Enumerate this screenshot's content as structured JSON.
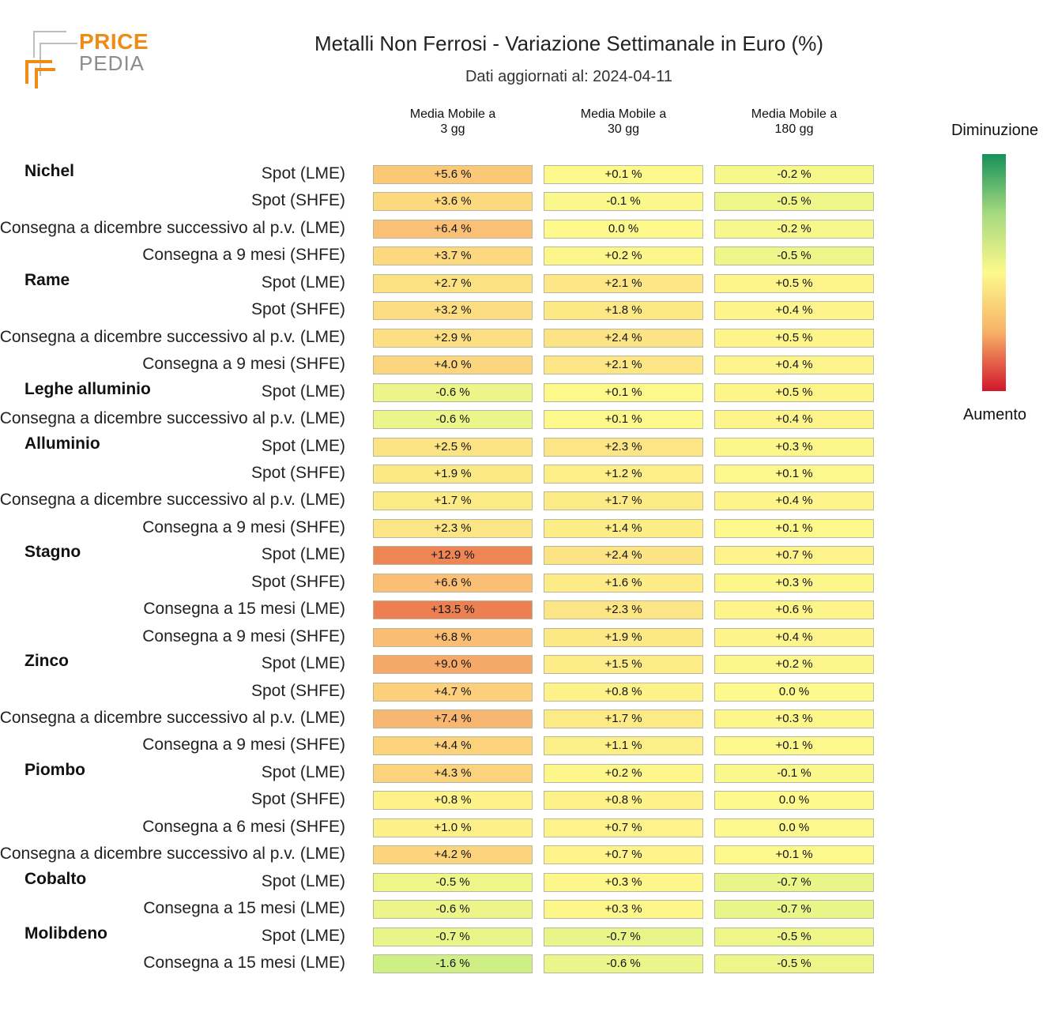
{
  "logo": {
    "line1": "PRICE",
    "line2": "PEDIA"
  },
  "title": "Metalli Non Ferrosi - Variazione Settimanale in Euro (%)",
  "subtitle": "Dati aggiornati al: 2024-04-11",
  "legend": {
    "top": "Diminuzione",
    "bottom": "Aumento",
    "colors": [
      "#15915a",
      "#a5d97f",
      "#fdf98c",
      "#f7b268",
      "#d2162c"
    ]
  },
  "chart_data": {
    "type": "table",
    "columns": [
      "Media Mobile a\n3 gg",
      "Media Mobile a\n30 gg",
      "Media Mobile a\n180 gg"
    ],
    "groups": [
      {
        "name": "Nichel",
        "rows": [
          {
            "label": "Spot (LME)",
            "values": [
              5.6,
              0.1,
              -0.2
            ],
            "text": [
              "+5.6 %",
              "+0.1 %",
              "-0.2 %"
            ]
          },
          {
            "label": "Spot (SHFE)",
            "values": [
              3.6,
              -0.1,
              -0.5
            ],
            "text": [
              "+3.6 %",
              "-0.1 %",
              "-0.5 %"
            ]
          },
          {
            "label": "Consegna a dicembre successivo al p.v. (LME)",
            "values": [
              6.4,
              0.0,
              -0.2
            ],
            "text": [
              "+6.4 %",
              "0.0 %",
              "-0.2 %"
            ]
          },
          {
            "label": "Consegna a 9 mesi (SHFE)",
            "values": [
              3.7,
              0.2,
              -0.5
            ],
            "text": [
              "+3.7 %",
              "+0.2 %",
              "-0.5 %"
            ]
          }
        ]
      },
      {
        "name": "Rame",
        "rows": [
          {
            "label": "Spot (LME)",
            "values": [
              2.7,
              2.1,
              0.5
            ],
            "text": [
              "+2.7 %",
              "+2.1 %",
              "+0.5 %"
            ]
          },
          {
            "label": "Spot (SHFE)",
            "values": [
              3.2,
              1.8,
              0.4
            ],
            "text": [
              "+3.2 %",
              "+1.8 %",
              "+0.4 %"
            ]
          },
          {
            "label": "Consegna a dicembre successivo al p.v. (LME)",
            "values": [
              2.9,
              2.4,
              0.5
            ],
            "text": [
              "+2.9 %",
              "+2.4 %",
              "+0.5 %"
            ]
          },
          {
            "label": "Consegna a 9 mesi (SHFE)",
            "values": [
              4.0,
              2.1,
              0.4
            ],
            "text": [
              "+4.0 %",
              "+2.1 %",
              "+0.4 %"
            ]
          }
        ]
      },
      {
        "name": "Leghe alluminio",
        "rows": [
          {
            "label": "Spot (LME)",
            "values": [
              -0.6,
              0.1,
              0.5
            ],
            "text": [
              "-0.6 %",
              "+0.1 %",
              "+0.5 %"
            ]
          },
          {
            "label": "Consegna a dicembre successivo al p.v. (LME)",
            "values": [
              -0.6,
              0.1,
              0.4
            ],
            "text": [
              "-0.6 %",
              "+0.1 %",
              "+0.4 %"
            ]
          }
        ]
      },
      {
        "name": "Alluminio",
        "rows": [
          {
            "label": "Spot (LME)",
            "values": [
              2.5,
              2.3,
              0.3
            ],
            "text": [
              "+2.5 %",
              "+2.3 %",
              "+0.3 %"
            ]
          },
          {
            "label": "Spot (SHFE)",
            "values": [
              1.9,
              1.2,
              0.1
            ],
            "text": [
              "+1.9 %",
              "+1.2 %",
              "+0.1 %"
            ]
          },
          {
            "label": "Consegna a dicembre successivo al p.v. (LME)",
            "values": [
              1.7,
              1.7,
              0.4
            ],
            "text": [
              "+1.7 %",
              "+1.7 %",
              "+0.4 %"
            ]
          },
          {
            "label": "Consegna a 9 mesi (SHFE)",
            "values": [
              2.3,
              1.4,
              0.1
            ],
            "text": [
              "+2.3 %",
              "+1.4 %",
              "+0.1 %"
            ]
          }
        ]
      },
      {
        "name": "Stagno",
        "rows": [
          {
            "label": "Spot (LME)",
            "values": [
              12.9,
              2.4,
              0.7
            ],
            "text": [
              "+12.9 %",
              "+2.4 %",
              "+0.7 %"
            ]
          },
          {
            "label": "Spot (SHFE)",
            "values": [
              6.6,
              1.6,
              0.3
            ],
            "text": [
              "+6.6 %",
              "+1.6 %",
              "+0.3 %"
            ]
          },
          {
            "label": "Consegna a 15 mesi (LME)",
            "values": [
              13.5,
              2.3,
              0.6
            ],
            "text": [
              "+13.5 %",
              "+2.3 %",
              "+0.6 %"
            ]
          },
          {
            "label": "Consegna a 9 mesi (SHFE)",
            "values": [
              6.8,
              1.9,
              0.4
            ],
            "text": [
              "+6.8 %",
              "+1.9 %",
              "+0.4 %"
            ]
          }
        ]
      },
      {
        "name": "Zinco",
        "rows": [
          {
            "label": "Spot (LME)",
            "values": [
              9.0,
              1.5,
              0.2
            ],
            "text": [
              "+9.0 %",
              "+1.5 %",
              "+0.2 %"
            ]
          },
          {
            "label": "Spot (SHFE)",
            "values": [
              4.7,
              0.8,
              0.0
            ],
            "text": [
              "+4.7 %",
              "+0.8 %",
              "0.0 %"
            ]
          },
          {
            "label": "Consegna a dicembre successivo al p.v. (LME)",
            "values": [
              7.4,
              1.7,
              0.3
            ],
            "text": [
              "+7.4 %",
              "+1.7 %",
              "+0.3 %"
            ]
          },
          {
            "label": "Consegna a 9 mesi (SHFE)",
            "values": [
              4.4,
              1.1,
              0.1
            ],
            "text": [
              "+4.4 %",
              "+1.1 %",
              "+0.1 %"
            ]
          }
        ]
      },
      {
        "name": "Piombo",
        "rows": [
          {
            "label": "Spot (LME)",
            "values": [
              4.3,
              0.2,
              -0.1
            ],
            "text": [
              "+4.3 %",
              "+0.2 %",
              "-0.1 %"
            ]
          },
          {
            "label": "Spot (SHFE)",
            "values": [
              0.8,
              0.8,
              0.0
            ],
            "text": [
              "+0.8 %",
              "+0.8 %",
              "0.0 %"
            ]
          },
          {
            "label": "Consegna a 6 mesi (SHFE)",
            "values": [
              1.0,
              0.7,
              0.0
            ],
            "text": [
              "+1.0 %",
              "+0.7 %",
              "0.0 %"
            ]
          },
          {
            "label": "Consegna a dicembre successivo al p.v. (LME)",
            "values": [
              4.2,
              0.7,
              0.1
            ],
            "text": [
              "+4.2 %",
              "+0.7 %",
              "+0.1 %"
            ]
          }
        ]
      },
      {
        "name": "Cobalto",
        "rows": [
          {
            "label": "Spot (LME)",
            "values": [
              -0.5,
              0.3,
              -0.7
            ],
            "text": [
              "-0.5 %",
              "+0.3 %",
              "-0.7 %"
            ]
          },
          {
            "label": "Consegna a 15 mesi (LME)",
            "values": [
              -0.6,
              0.3,
              -0.7
            ],
            "text": [
              "-0.6 %",
              "+0.3 %",
              "-0.7 %"
            ]
          }
        ]
      },
      {
        "name": "Molibdeno",
        "rows": [
          {
            "label": "Spot (LME)",
            "values": [
              -0.7,
              -0.7,
              -0.5
            ],
            "text": [
              "-0.7 %",
              "-0.7 %",
              "-0.5 %"
            ]
          },
          {
            "label": "Consegna a 15 mesi (LME)",
            "values": [
              -1.6,
              -0.6,
              -0.5
            ],
            "text": [
              "-1.6 %",
              "-0.6 %",
              "-0.5 %"
            ]
          }
        ]
      }
    ]
  }
}
